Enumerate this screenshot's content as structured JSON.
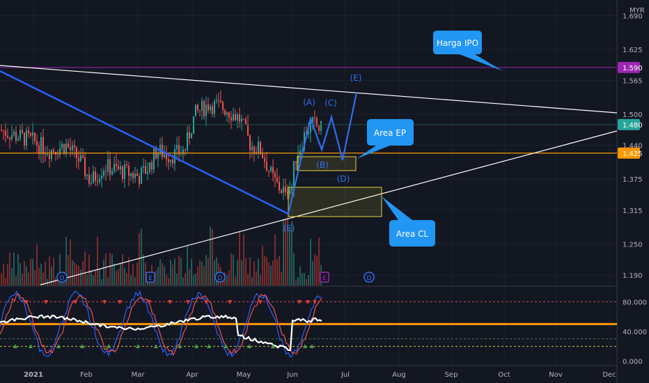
{
  "chart_data": {
    "type": "candlestick",
    "currency": "MYR",
    "months": [
      "2021",
      "Feb",
      "Mar",
      "Apr",
      "May",
      "Jun",
      "Jul",
      "Aug",
      "Sep",
      "Oct",
      "Nov",
      "Dec"
    ],
    "price_axis": {
      "min": 1.17,
      "max": 1.72,
      "ticks": [
        "1.690",
        "1.625",
        "1.565",
        "1.500",
        "1.440",
        "1.375",
        "1.315",
        "1.250",
        "1.190"
      ]
    },
    "price_tags": [
      {
        "label": "1.590",
        "price": 1.59,
        "color": "#9c27b0"
      },
      {
        "label": "1.480",
        "price": 1.48,
        "color": "#26a69a"
      },
      {
        "label": "1.425",
        "price": 1.425,
        "color": "#ff9800"
      }
    ],
    "annotations": [
      {
        "text": "Harga IPO",
        "color": "#2196f3"
      },
      {
        "text": "Area EP",
        "color": "#2196f3"
      },
      {
        "text": "Area CL",
        "color": "#2196f3"
      }
    ],
    "wave_labels": [
      "(A)",
      "(B)",
      "(C)",
      "(D)",
      "(E)",
      "(E)"
    ],
    "event_markers": [
      "D",
      "E",
      "D",
      "E",
      "D"
    ],
    "oscillator": {
      "ticks": [
        "80.000",
        "40.000",
        "0.000"
      ],
      "min": -5,
      "max": 100,
      "threshold": 50
    },
    "colors": {
      "up": "#26a69a",
      "down": "#ef5350",
      "ipo_line": "#9c27b0",
      "support_line": "#ff9800",
      "trend_line": "#ffffff",
      "downtrend": "#2962ff",
      "wave": "#2f6fed",
      "zone_border": "#e8d23a",
      "callout": "#2196f3"
    }
  }
}
